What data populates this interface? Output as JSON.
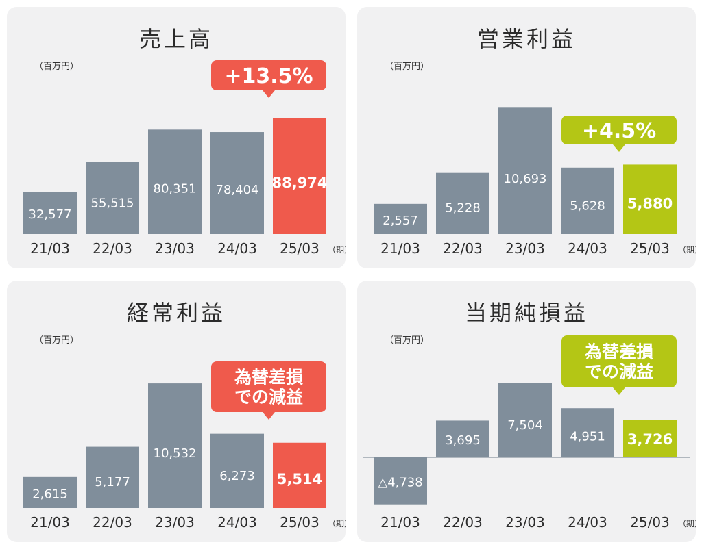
{
  "colors": {
    "panel_bg": "#f1f1f2",
    "bar": "#808e9b",
    "red": "#ef5a4c",
    "green": "#b4c615",
    "text": "#2b2b2b"
  },
  "chart_data": [
    {
      "type": "bar",
      "title": "売上高",
      "unit": "（百万円）",
      "period_suffix": "（期）",
      "categories": [
        "21/03",
        "22/03",
        "23/03",
        "24/03",
        "25/03"
      ],
      "values": [
        32577,
        55515,
        80351,
        78404,
        88974
      ],
      "labels": [
        "32,577",
        "55,515",
        "80,351",
        "78,404",
        "88,974"
      ],
      "highlight_index": 4,
      "highlight_color": "#ef5a4c",
      "callout": "+13.5%",
      "ylim": [
        0,
        100000
      ]
    },
    {
      "type": "bar",
      "title": "営業利益",
      "unit": "（百万円）",
      "period_suffix": "（期）",
      "categories": [
        "21/03",
        "22/03",
        "23/03",
        "24/03",
        "25/03"
      ],
      "values": [
        2557,
        5228,
        10693,
        5628,
        5880
      ],
      "labels": [
        "2,557",
        "5,228",
        "10,693",
        "5,628",
        "5,880"
      ],
      "highlight_index": 4,
      "highlight_color": "#b4c615",
      "callout": "+4.5%",
      "ylim": [
        0,
        11000
      ]
    },
    {
      "type": "bar",
      "title": "経常利益",
      "unit": "（百万円）",
      "period_suffix": "（期）",
      "categories": [
        "21/03",
        "22/03",
        "23/03",
        "24/03",
        "25/03"
      ],
      "values": [
        2615,
        5177,
        10532,
        6273,
        5514
      ],
      "labels": [
        "2,615",
        "5,177",
        "10,532",
        "6,273",
        "5,514"
      ],
      "highlight_index": 4,
      "highlight_color": "#ef5a4c",
      "callout": "為替差損\nでの減益",
      "ylim": [
        0,
        11000
      ]
    },
    {
      "type": "bar",
      "title": "当期純損益",
      "unit": "（百万円）",
      "period_suffix": "（期）",
      "categories": [
        "21/03",
        "22/03",
        "23/03",
        "24/03",
        "25/03"
      ],
      "values": [
        -4738,
        3695,
        7504,
        4951,
        3726
      ],
      "labels": [
        "△4,738",
        "3,695",
        "7,504",
        "4,951",
        "3,726"
      ],
      "highlight_index": 4,
      "highlight_color": "#b4c615",
      "callout": "為替差損\nでの減益",
      "ylim": [
        -5000,
        8000
      ]
    }
  ]
}
